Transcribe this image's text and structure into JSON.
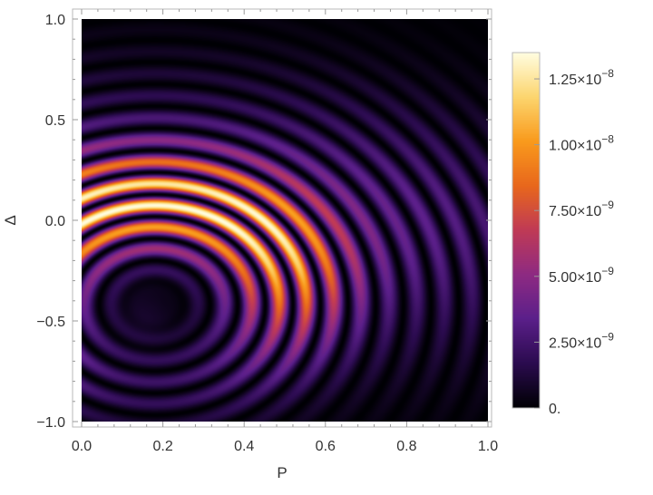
{
  "chart_data": {
    "type": "heatmap",
    "title": "",
    "xlabel": "P",
    "ylabel": "Δ",
    "xlim": [
      0.0,
      1.0
    ],
    "ylim": [
      -1.0,
      1.0
    ],
    "x_ticks": [
      "0.0",
      "0.2",
      "0.4",
      "0.6",
      "0.8",
      "1.0"
    ],
    "y_ticks": [
      "−1.0",
      "−0.5",
      "0.0",
      "0.5",
      "1.0"
    ],
    "colorbar": {
      "min": 0,
      "max": 1.35e-08,
      "colormap": "inferno-like",
      "colors": [
        "#000004",
        "#2b0b4f",
        "#5b1f8a",
        "#8e2a82",
        "#c03a56",
        "#e8671c",
        "#f99a1c",
        "#fcd56e",
        "#fffde0"
      ],
      "ticks": [
        {
          "value": 0,
          "mantissa": "0.",
          "exponent": ""
        },
        {
          "value": 2.5e-09,
          "mantissa": "2.50×10",
          "exponent": "−9"
        },
        {
          "value": 5e-09,
          "mantissa": "5.00×10",
          "exponent": "−9"
        },
        {
          "value": 7.5e-09,
          "mantissa": "7.50×10",
          "exponent": "−9"
        },
        {
          "value": 1e-08,
          "mantissa": "1.00×10",
          "exponent": "−8"
        },
        {
          "value": 1.25e-08,
          "mantissa": "1.25×10",
          "exponent": "−8"
        }
      ]
    },
    "field": {
      "description": "concentric bright arcs centered near (P=0.18, Δ=-0.42); alternating bright/dark fringes; peak near P≈0.45, Δ≈-0.05",
      "center": [
        0.18,
        -0.42
      ],
      "peak_value": 1.35e-08
    },
    "grid": false,
    "legend": "colorbar-right"
  }
}
